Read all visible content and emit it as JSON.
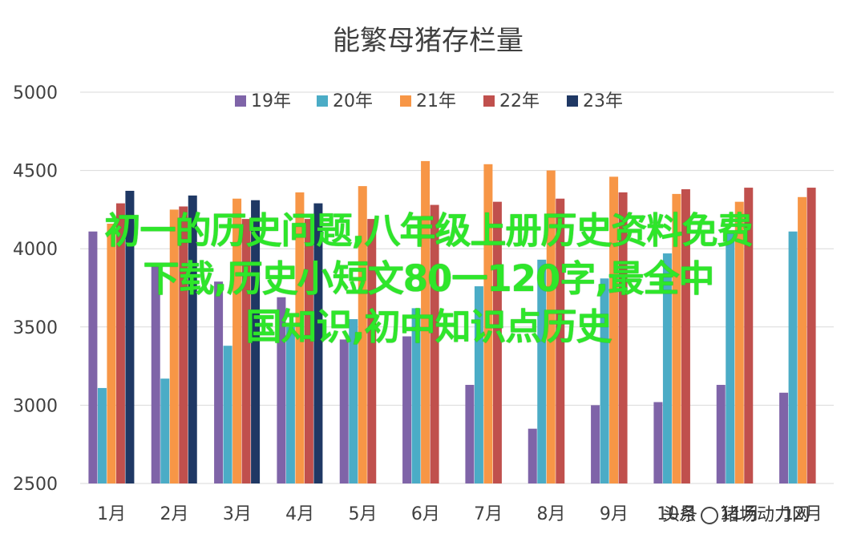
{
  "chart_data": {
    "type": "bar",
    "title": "能繁母猪存栏量",
    "xlabel": "",
    "ylabel": "",
    "categories": [
      "1月",
      "2月",
      "3月",
      "4月",
      "5月",
      "6月",
      "7月",
      "8月",
      "9月",
      "10月",
      "11月",
      "12月"
    ],
    "ylim": [
      2500,
      5000
    ],
    "yticks": [
      2500,
      3000,
      3500,
      4000,
      4500,
      5000
    ],
    "grid": true,
    "legend_position": "top",
    "series": [
      {
        "name": "19年",
        "color": "#7f64a8",
        "values": [
          4110,
          3890,
          3790,
          3690,
          3420,
          3440,
          3130,
          2850,
          3000,
          3020,
          3130,
          3080
        ]
      },
      {
        "name": "20年",
        "color": "#4bacc6",
        "values": [
          3110,
          3170,
          3380,
          3500,
          3550,
          3620,
          3760,
          3930,
          3810,
          3970,
          4110,
          4110
        ]
      },
      {
        "name": "21年",
        "color": "#f79646",
        "values": [
          4160,
          4250,
          4320,
          4360,
          4400,
          4560,
          4540,
          4500,
          4460,
          4350,
          4300,
          4330
        ]
      },
      {
        "name": "22年",
        "color": "#c0504d",
        "values": [
          4290,
          4270,
          4190,
          4190,
          4190,
          4280,
          4300,
          4320,
          4360,
          4380,
          4390,
          4390
        ]
      },
      {
        "name": "23年",
        "color": "#1f3864",
        "values": [
          4370,
          4340,
          4310,
          4290,
          null,
          null,
          null,
          null,
          null,
          null,
          null,
          null
        ]
      }
    ]
  },
  "overlay": {
    "line1": "初一的历史问题,八年级上册历史资料免费",
    "line2": "下载,历史小短文80一120字,最全中",
    "line3": "国知识,初中知识点历史"
  },
  "watermark": {
    "prefix": "头条",
    "handle": "猪场动力网"
  }
}
